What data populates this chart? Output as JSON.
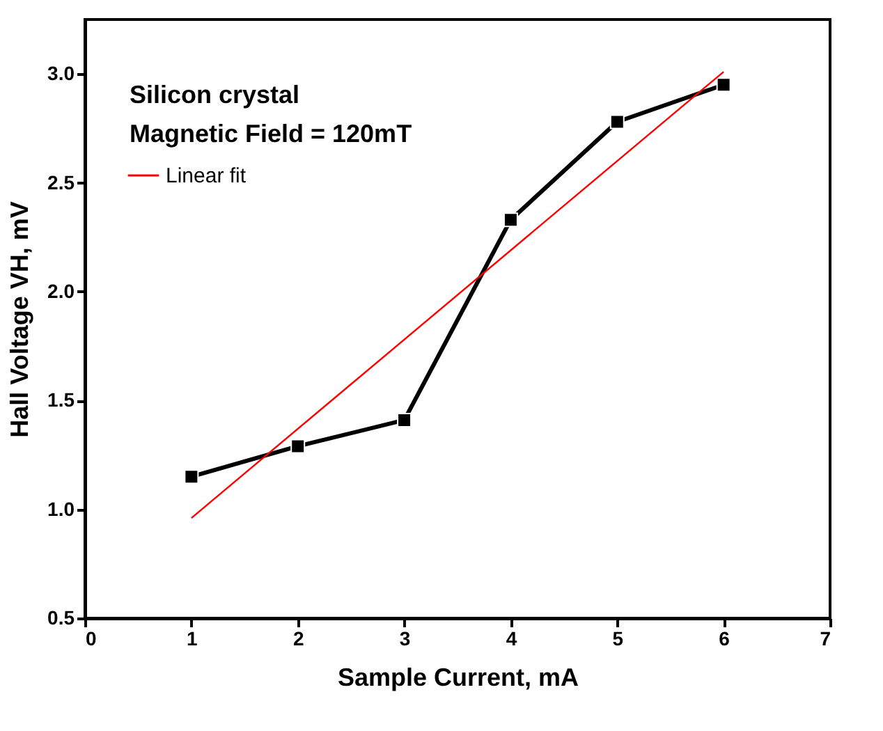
{
  "chart_data": {
    "type": "line",
    "xlabel": "Sample Current, mA",
    "ylabel": "Hall Voltage VH, mV",
    "annotations": [
      "Silicon crystal",
      "Magnetic Field = 120mT"
    ],
    "x": [
      1,
      2,
      3,
      4,
      5,
      6
    ],
    "series": [
      {
        "color": "#000000",
        "values": [
          1.15,
          1.29,
          1.41,
          2.33,
          2.78,
          2.95
        ],
        "marker": "square"
      },
      {
        "name": "Linear fit",
        "type": "line",
        "color": "#ff0000",
        "x": [
          1,
          6
        ],
        "values": [
          0.96,
          3.01
        ],
        "marker": "none"
      }
    ],
    "xlim": [
      0,
      7
    ],
    "xticks": [
      0,
      1,
      2,
      3,
      4,
      5,
      6,
      7
    ],
    "ylim": [
      0.5,
      3.25
    ],
    "yticks": [
      0.5,
      {
        "value": 1,
        "label": "1.0"
      },
      1.5,
      {
        "value": 2,
        "label": "2.0"
      },
      2.5,
      {
        "value": 3,
        "label": "3.0"
      }
    ],
    "grid": false,
    "legend": "top left"
  }
}
